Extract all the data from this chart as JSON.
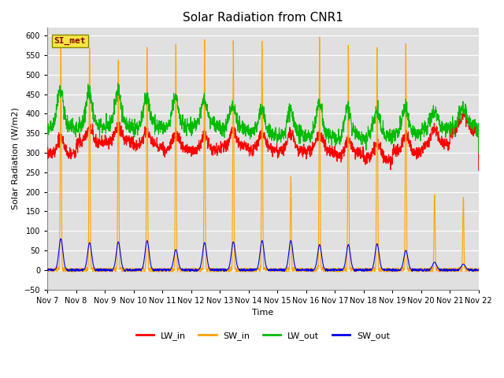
{
  "title": "Solar Radiation from CNR1",
  "xlabel": "Time",
  "ylabel": "Solar Radiation (W/m2)",
  "ylim": [
    -50,
    620
  ],
  "yticks": [
    -50,
    0,
    50,
    100,
    150,
    200,
    250,
    300,
    350,
    400,
    450,
    500,
    550,
    600
  ],
  "x_tick_labels": [
    "Nov 7",
    "Nov 8",
    "Nov 9",
    "Nov 10",
    "Nov 11",
    "Nov 12",
    "Nov 13",
    "Nov 14",
    "Nov 15",
    "Nov 16",
    "Nov 17",
    "Nov 18",
    "Nov 19",
    "Nov 20",
    "Nov 21",
    "Nov 22"
  ],
  "annotation_text": "SI_met",
  "annotation_color": "#8B0000",
  "annotation_bg": "#F5E642",
  "colors": {
    "LW_in": "#FF0000",
    "SW_in": "#FFA500",
    "LW_out": "#00BB00",
    "SW_out": "#0000EE"
  },
  "linewidth": 0.8,
  "background_color": "#E0E0E0",
  "grid_color": "#FFFFFF",
  "title_fontsize": 11,
  "tick_fontsize": 7,
  "label_fontsize": 8
}
